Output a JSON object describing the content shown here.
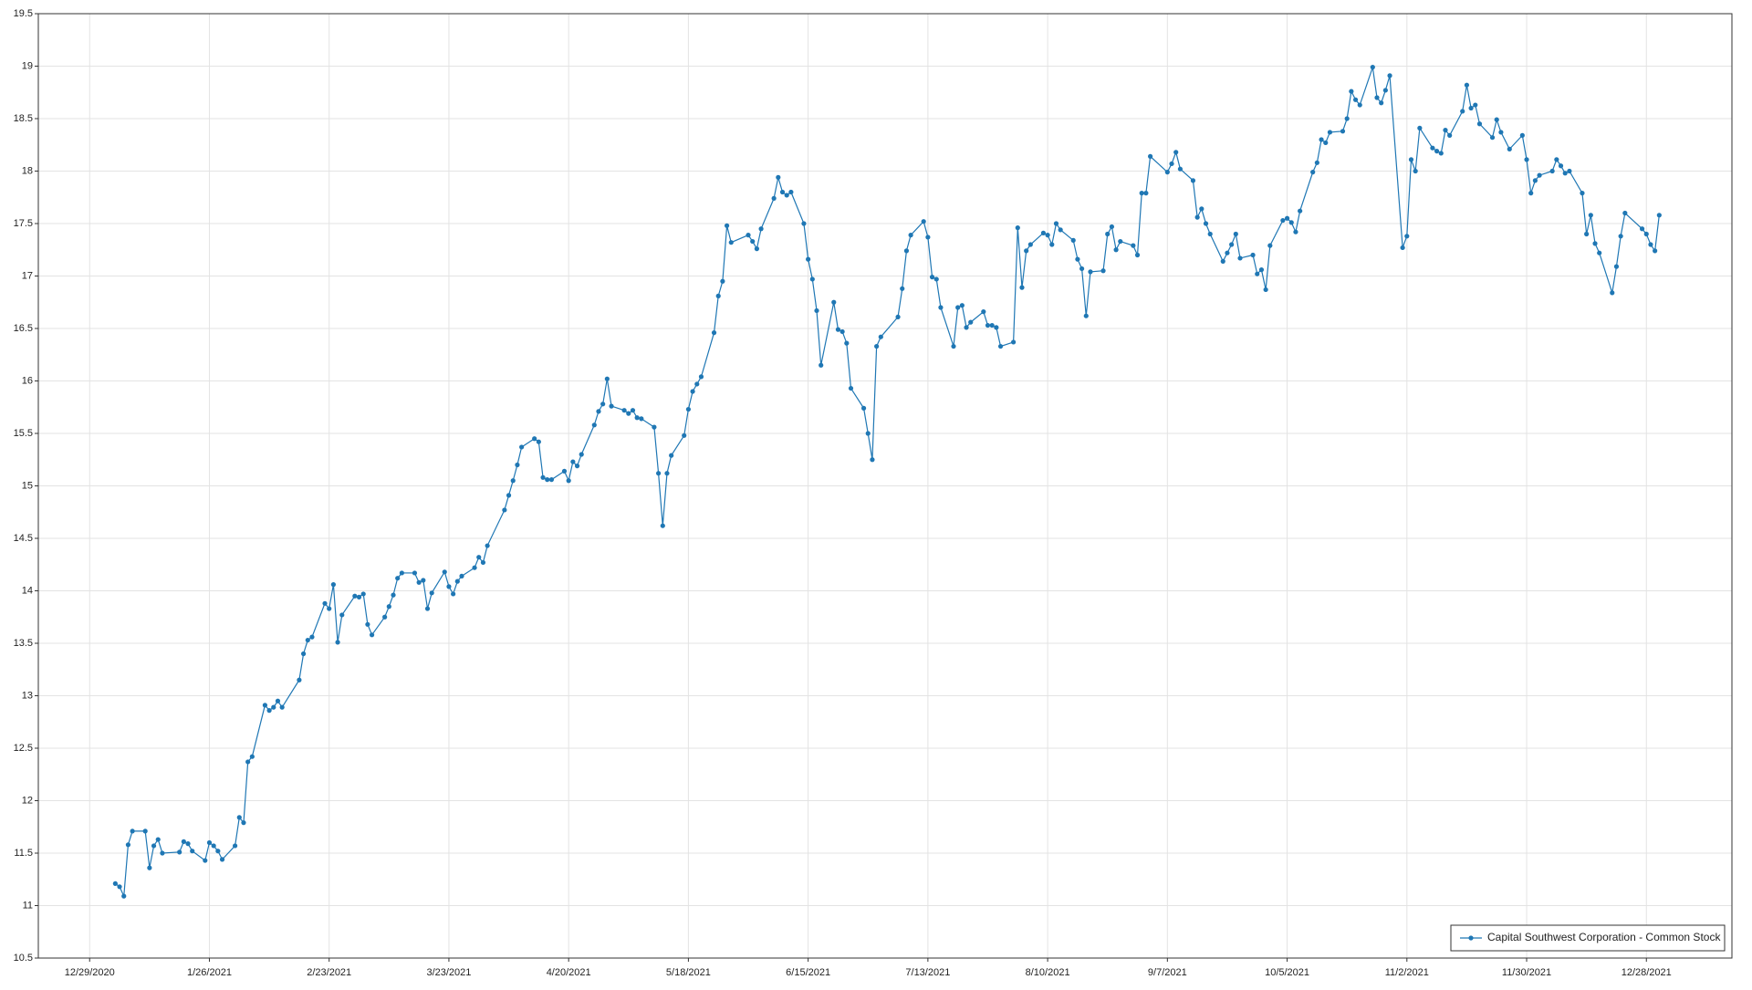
{
  "chart_data": {
    "type": "line",
    "x": [
      "1/4/2021",
      "1/5/2021",
      "1/6/2021",
      "1/7/2021",
      "1/8/2021",
      "1/11/2021",
      "1/12/2021",
      "1/13/2021",
      "1/14/2021",
      "1/15/2021",
      "1/19/2021",
      "1/20/2021",
      "1/21/2021",
      "1/22/2021",
      "1/25/2021",
      "1/26/2021",
      "1/27/2021",
      "1/28/2021",
      "1/29/2021",
      "2/1/2021",
      "2/2/2021",
      "2/3/2021",
      "2/4/2021",
      "2/5/2021",
      "2/8/2021",
      "2/9/2021",
      "2/10/2021",
      "2/11/2021",
      "2/12/2021",
      "2/16/2021",
      "2/17/2021",
      "2/18/2021",
      "2/19/2021",
      "2/22/2021",
      "2/23/2021",
      "2/24/2021",
      "2/25/2021",
      "2/26/2021",
      "3/1/2021",
      "3/2/2021",
      "3/3/2021",
      "3/4/2021",
      "3/5/2021",
      "3/8/2021",
      "3/9/2021",
      "3/10/2021",
      "3/11/2021",
      "3/12/2021",
      "3/15/2021",
      "3/16/2021",
      "3/17/2021",
      "3/18/2021",
      "3/19/2021",
      "3/22/2021",
      "3/23/2021",
      "3/24/2021",
      "3/25/2021",
      "3/26/2021",
      "3/29/2021",
      "3/30/2021",
      "3/31/2021",
      "4/1/2021",
      "4/5/2021",
      "4/6/2021",
      "4/7/2021",
      "4/8/2021",
      "4/9/2021",
      "4/12/2021",
      "4/13/2021",
      "4/14/2021",
      "4/15/2021",
      "4/16/2021",
      "4/19/2021",
      "4/20/2021",
      "4/21/2021",
      "4/22/2021",
      "4/23/2021",
      "4/26/2021",
      "4/27/2021",
      "4/28/2021",
      "4/29/2021",
      "4/30/2021",
      "5/3/2021",
      "5/4/2021",
      "5/5/2021",
      "5/6/2021",
      "5/7/2021",
      "5/10/2021",
      "5/11/2021",
      "5/12/2021",
      "5/13/2021",
      "5/14/2021",
      "5/17/2021",
      "5/18/2021",
      "5/19/2021",
      "5/20/2021",
      "5/21/2021",
      "5/24/2021",
      "5/25/2021",
      "5/26/2021",
      "5/27/2021",
      "5/28/2021",
      "6/1/2021",
      "6/2/2021",
      "6/3/2021",
      "6/4/2021",
      "6/7/2021",
      "6/8/2021",
      "6/9/2021",
      "6/10/2021",
      "6/11/2021",
      "6/14/2021",
      "6/15/2021",
      "6/16/2021",
      "6/17/2021",
      "6/18/2021",
      "6/21/2021",
      "6/22/2021",
      "6/23/2021",
      "6/24/2021",
      "6/25/2021",
      "6/28/2021",
      "6/29/2021",
      "6/30/2021",
      "7/1/2021",
      "7/2/2021",
      "7/6/2021",
      "7/7/2021",
      "7/8/2021",
      "7/9/2021",
      "7/12/2021",
      "7/13/2021",
      "7/14/2021",
      "7/15/2021",
      "7/16/2021",
      "7/19/2021",
      "7/20/2021",
      "7/21/2021",
      "7/22/2021",
      "7/23/2021",
      "7/26/2021",
      "7/27/2021",
      "7/28/2021",
      "7/29/2021",
      "7/30/2021",
      "8/2/2021",
      "8/3/2021",
      "8/4/2021",
      "8/5/2021",
      "8/6/2021",
      "8/9/2021",
      "8/10/2021",
      "8/11/2021",
      "8/12/2021",
      "8/13/2021",
      "8/16/2021",
      "8/17/2021",
      "8/18/2021",
      "8/19/2021",
      "8/20/2021",
      "8/23/2021",
      "8/24/2021",
      "8/25/2021",
      "8/26/2021",
      "8/27/2021",
      "8/30/2021",
      "8/31/2021",
      "9/1/2021",
      "9/2/2021",
      "9/3/2021",
      "9/7/2021",
      "9/8/2021",
      "9/9/2021",
      "9/10/2021",
      "9/13/2021",
      "9/14/2021",
      "9/15/2021",
      "9/16/2021",
      "9/17/2021",
      "9/20/2021",
      "9/21/2021",
      "9/22/2021",
      "9/23/2021",
      "9/24/2021",
      "9/27/2021",
      "9/28/2021",
      "9/29/2021",
      "9/30/2021",
      "10/1/2021",
      "10/4/2021",
      "10/5/2021",
      "10/6/2021",
      "10/7/2021",
      "10/8/2021",
      "10/11/2021",
      "10/12/2021",
      "10/13/2021",
      "10/14/2021",
      "10/15/2021",
      "10/18/2021",
      "10/19/2021",
      "10/20/2021",
      "10/21/2021",
      "10/22/2021",
      "10/25/2021",
      "10/26/2021",
      "10/27/2021",
      "10/28/2021",
      "10/29/2021",
      "11/1/2021",
      "11/2/2021",
      "11/3/2021",
      "11/4/2021",
      "11/5/2021",
      "11/8/2021",
      "11/9/2021",
      "11/10/2021",
      "11/11/2021",
      "11/12/2021",
      "11/15/2021",
      "11/16/2021",
      "11/17/2021",
      "11/18/2021",
      "11/19/2021",
      "11/22/2021",
      "11/23/2021",
      "11/24/2021",
      "11/26/2021",
      "11/29/2021",
      "11/30/2021",
      "12/1/2021",
      "12/2/2021",
      "12/3/2021",
      "12/6/2021",
      "12/7/2021",
      "12/8/2021",
      "12/9/2021",
      "12/10/2021",
      "12/13/2021",
      "12/14/2021",
      "12/15/2021",
      "12/16/2021",
      "12/17/2021",
      "12/20/2021",
      "12/21/2021",
      "12/22/2021",
      "12/23/2021",
      "12/27/2021",
      "12/28/2021",
      "12/29/2021",
      "12/30/2021",
      "12/31/2021"
    ],
    "series": [
      {
        "name": "Capital Southwest Corporation - Common Stock",
        "color": "#1f77b4",
        "values": [
          11.21,
          11.18,
          11.09,
          11.58,
          11.71,
          11.71,
          11.36,
          11.57,
          11.63,
          11.5,
          11.51,
          11.61,
          11.59,
          11.52,
          11.43,
          11.6,
          11.57,
          11.52,
          11.44,
          11.57,
          11.84,
          11.79,
          12.37,
          12.42,
          12.91,
          12.86,
          12.89,
          12.95,
          12.89,
          13.15,
          13.4,
          13.53,
          13.56,
          13.88,
          13.83,
          14.06,
          13.51,
          13.77,
          13.95,
          13.94,
          13.97,
          13.68,
          13.58,
          13.75,
          13.85,
          13.96,
          14.12,
          14.17,
          14.17,
          14.08,
          14.1,
          13.83,
          13.98,
          14.18,
          14.04,
          13.97,
          14.09,
          14.14,
          14.22,
          14.32,
          14.27,
          14.43,
          14.77,
          14.91,
          15.05,
          15.2,
          15.37,
          15.45,
          15.42,
          15.08,
          15.06,
          15.06,
          15.14,
          15.05,
          15.23,
          15.19,
          15.3,
          15.58,
          15.71,
          15.78,
          16.02,
          15.76,
          15.72,
          15.69,
          15.72,
          15.65,
          15.64,
          15.56,
          15.12,
          14.62,
          15.12,
          15.29,
          15.48,
          15.73,
          15.9,
          15.97,
          16.04,
          16.46,
          16.81,
          16.95,
          17.48,
          17.32,
          17.39,
          17.33,
          17.26,
          17.45,
          17.74,
          17.94,
          17.8,
          17.77,
          17.8,
          17.5,
          17.16,
          16.97,
          16.67,
          16.15,
          16.75,
          16.49,
          16.47,
          16.36,
          15.93,
          15.74,
          15.5,
          15.25,
          16.33,
          16.42,
          16.61,
          16.88,
          17.24,
          17.39,
          17.52,
          17.37,
          16.99,
          16.97,
          16.7,
          16.33,
          16.7,
          16.72,
          16.51,
          16.56,
          16.66,
          16.53,
          16.53,
          16.51,
          16.33,
          16.37,
          17.46,
          16.89,
          17.24,
          17.3,
          17.41,
          17.39,
          17.3,
          17.5,
          17.44,
          17.34,
          17.16,
          17.07,
          16.62,
          17.04,
          17.05,
          17.4,
          17.47,
          17.25,
          17.33,
          17.29,
          17.2,
          17.79,
          17.79,
          18.14,
          17.99,
          18.07,
          18.18,
          18.02,
          17.91,
          17.56,
          17.64,
          17.5,
          17.4,
          17.14,
          17.22,
          17.3,
          17.4,
          17.17,
          17.2,
          17.02,
          17.06,
          16.87,
          17.29,
          17.53,
          17.55,
          17.51,
          17.42,
          17.62,
          17.99,
          18.08,
          18.3,
          18.27,
          18.37,
          18.38,
          18.5,
          18.76,
          18.68,
          18.63,
          18.99,
          18.7,
          18.65,
          18.77,
          18.91,
          17.27,
          17.38,
          18.11,
          18.0,
          18.41,
          18.22,
          18.19,
          18.17,
          18.39,
          18.34,
          18.57,
          18.82,
          18.6,
          18.63,
          18.45,
          18.32,
          18.49,
          18.37,
          18.21,
          18.34,
          18.11,
          17.79,
          17.91,
          17.96,
          18.0,
          18.11,
          18.05,
          17.98,
          18.0,
          17.79,
          17.4,
          17.58,
          17.31,
          17.22,
          16.84,
          17.09,
          17.38,
          17.6,
          17.45,
          17.4,
          17.3,
          17.24,
          17.58
        ]
      }
    ],
    "xlim": [
      "12/17/2020",
      "1/17/2022"
    ],
    "xticks": [
      "12/29/2020",
      "1/26/2021",
      "2/23/2021",
      "3/23/2021",
      "4/20/2021",
      "5/18/2021",
      "6/15/2021",
      "7/13/2021",
      "8/10/2021",
      "9/7/2021",
      "10/5/2021",
      "11/2/2021",
      "11/30/2021",
      "12/28/2021"
    ],
    "ylim": [
      10.5,
      19.5
    ],
    "yticks": [
      10.5,
      11,
      11.5,
      12,
      12.5,
      13,
      13.5,
      14,
      14.5,
      15,
      15.5,
      16,
      16.5,
      17,
      17.5,
      18,
      18.5,
      19,
      19.5
    ],
    "grid": true,
    "legend": "lower right"
  }
}
